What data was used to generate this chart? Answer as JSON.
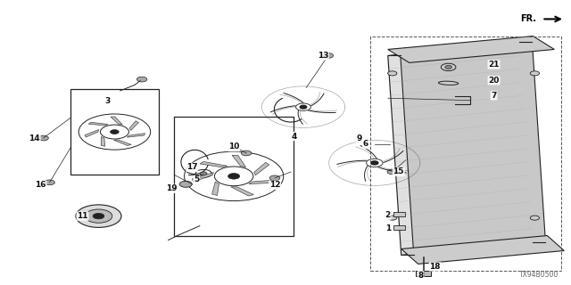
{
  "bg_color": "#ffffff",
  "line_color": "#222222",
  "label_color": "#111111",
  "diagram_code": "TX94B0500",
  "fr_label": "FR."
}
